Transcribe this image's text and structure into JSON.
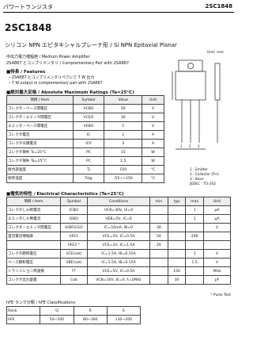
{
  "header": {
    "category": "パワートランジスタ",
    "part": "2SC1848"
  },
  "title": "2SC1848",
  "subtitle": "シリコン NPN エピタキシャルプレーナ形 / Si NPN Epitaxial Planar",
  "application": [
    "中出力電力増幅用 / Medium Power Amplifier",
    "2SA887 とコンプリメンタリ / Complementary Pair with 2SA887"
  ],
  "features": {
    "heading": "■特長 / Features",
    "items": [
      "・2SA887 とコンプリメンタリペアにて 7 W 出力",
      "・7 W output in complementary pair with 2SA887"
    ]
  },
  "ratings": {
    "heading": "■絶対最大定格 / Absolute Maximum Ratings (Ta=25°C)",
    "columns": [
      "項目 / Item",
      "Symbol",
      "Value",
      "Unit"
    ],
    "rows": [
      [
        "コレクタ・ベース間電圧",
        "VCBO",
        "50",
        "V"
      ],
      [
        "コレクタ・エミッタ間電圧",
        "VCEO",
        "30",
        "V"
      ],
      [
        "エミッタ・ベース間電圧",
        "VEBO",
        "5",
        "V"
      ],
      [
        "コレクタ電流",
        "IC",
        "2",
        "A"
      ],
      [
        "コレクタ尖頭電流",
        "ICP",
        "3",
        "A"
      ],
      [
        "コレクタ損失 Tc=25°C",
        "PC",
        "15",
        "W"
      ],
      [
        "コレクタ損失 Ta=25°C",
        "PC",
        "1.5",
        "W"
      ],
      [
        "接合部温度",
        "Tj",
        "150",
        "°C"
      ],
      [
        "保存温度",
        "Tstg",
        "-55~+150",
        "°C"
      ]
    ]
  },
  "package": {
    "unit": "Unit: mm",
    "pins": [
      "1 : Emitter",
      "2 : Collector (Fin)",
      "3 : Base"
    ],
    "jedec": "JEDEC : TO-202"
  },
  "electrical": {
    "heading": "■電気的特性 / Electrical Characteristics (Ta=25°C)",
    "columns": [
      "項目 / Item",
      "Symbol",
      "Conditions",
      "min",
      "typ",
      "max",
      "Unit"
    ],
    "rows": [
      [
        "コレクタしゃ断電流",
        "ICBO",
        "VCB=30V, IE=0",
        "",
        "",
        "1",
        "μA"
      ],
      [
        "エミッタしゃ断電流",
        "IEBO",
        "VEB=5V, IC=0",
        "",
        "",
        "1",
        "μA"
      ],
      [
        "コレクタ・エミッタ間電圧",
        "V(BR)CEO",
        "IC=10mA, IB=0",
        "30",
        "",
        "",
        "V"
      ],
      [
        "直流電流増幅率",
        "hFE1",
        "VCE=2V, IC=0.5A",
        "50",
        "",
        "200",
        ""
      ],
      [
        "",
        "hFE2 *",
        "VCE=2V, IC=1.5A",
        "20",
        "",
        "",
        ""
      ],
      [
        "コレクタ飽和電圧",
        "VCE(sat)",
        "IC=1.5A, IB=0.15A",
        "",
        "",
        "1",
        "V"
      ],
      [
        "ベース飽和電圧",
        "VBE(sat)",
        "IC=1.5A, IB=0.15A",
        "",
        "",
        "1.5",
        "V"
      ],
      [
        "トランジション周波数",
        "fT",
        "VCE=5V, IC=0.5A",
        "",
        "150",
        "",
        "MHz"
      ],
      [
        "コレクタ出力容量",
        "Cob",
        "VCB=10V, IE=0, f=1MHz",
        "",
        "30",
        "",
        "pF"
      ]
    ]
  },
  "footnote": "* Pulse Test",
  "classification": {
    "heading": "hFE ランク分類 / hFE Classifications",
    "rows": [
      [
        "Rank",
        "Q",
        "R",
        "S"
      ],
      [
        "hFE",
        "50~100",
        "80~160",
        "130~200"
      ]
    ]
  }
}
